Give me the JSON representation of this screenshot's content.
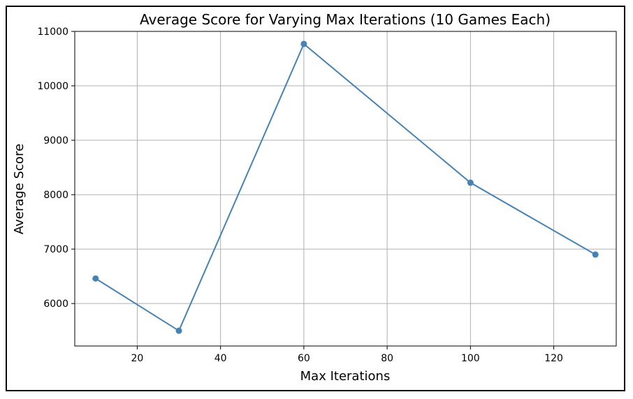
{
  "chart_data": {
    "type": "line",
    "title": "Average Score for Varying Max Iterations (10 Games Each)",
    "xlabel": "Max Iterations",
    "ylabel": "Average Score",
    "xlim": [
      5,
      135
    ],
    "ylim": [
      5220,
      11000
    ],
    "xticks": [
      20,
      40,
      60,
      80,
      100,
      120
    ],
    "yticks": [
      6000,
      7000,
      8000,
      9000,
      10000,
      11000
    ],
    "grid": true,
    "series": [
      {
        "x": [
          10,
          30,
          60,
          100,
          130
        ],
        "y": [
          6460,
          5500,
          10770,
          8220,
          6900
        ],
        "color": "#4682b4",
        "marker": "circle"
      }
    ]
  }
}
